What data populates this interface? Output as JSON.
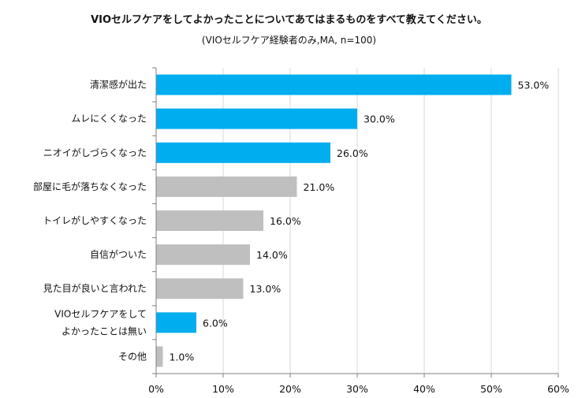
{
  "chart_data": {
    "type": "bar",
    "orientation": "horizontal",
    "title": "VIOセルフケアをしてよかったことについてあてはまるものをすべて教えてください。",
    "subtitle": "(VIOセルフケア経験者のみ,MA, n=100)",
    "categories": [
      [
        "清潔感が出た"
      ],
      [
        "ムレにくくなった"
      ],
      [
        "ニオイがしづらくなった"
      ],
      [
        "部屋に毛が落ちなくなった"
      ],
      [
        "トイレがしやすくなった"
      ],
      [
        "自信がついた"
      ],
      [
        "見た目が良いと言われた"
      ],
      [
        "VIOセルフケアをして",
        "よかったことは無い"
      ],
      [
        "その他"
      ]
    ],
    "values": [
      53.0,
      30.0,
      26.0,
      21.0,
      16.0,
      14.0,
      13.0,
      6.0,
      1.0
    ],
    "value_labels": [
      "53.0%",
      "30.0%",
      "26.0%",
      "21.0%",
      "16.0%",
      "14.0%",
      "13.0%",
      "6.0%",
      "1.0%"
    ],
    "highlight": [
      true,
      true,
      true,
      false,
      false,
      false,
      false,
      true,
      false
    ],
    "colors": {
      "highlight": "#00aeef",
      "normal": "#bfbfbf",
      "grid": "#d9d9d9",
      "axis": "#808080"
    },
    "xlim": [
      0,
      60
    ],
    "xticks": [
      0,
      10,
      20,
      30,
      40,
      50,
      60
    ],
    "xtick_labels": [
      "0%",
      "10%",
      "20%",
      "30%",
      "40%",
      "50%",
      "60%"
    ],
    "grid": true
  }
}
